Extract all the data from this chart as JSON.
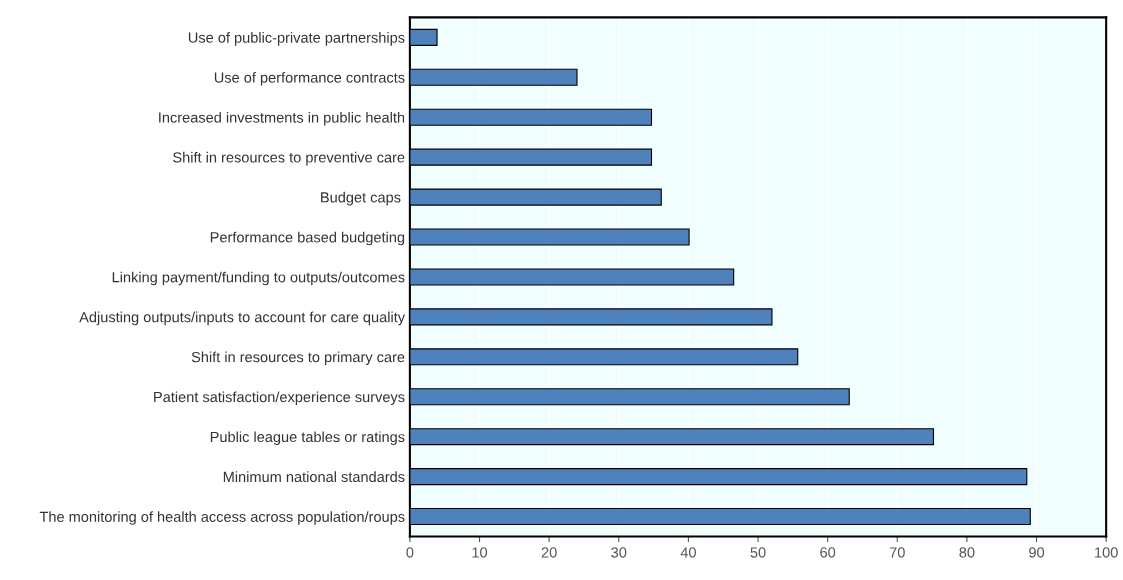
{
  "chart_data": {
    "type": "bar",
    "orientation": "horizontal",
    "categories": [
      "Use of public-private partnerships",
      "Use of performance contracts",
      "Increased investments in public health",
      "Shift in resources to preventive care",
      "Budget caps ",
      "Performance based budgeting",
      "Linking payment/funding to outputs/outcomes",
      "Adjusting outputs/inputs to account for care quality",
      "Shift in resources to primary care",
      "Patient satisfaction/experience surveys",
      "Public league tables or ratings",
      "Minimum national standards",
      "The monitoring of health access across population/roups"
    ],
    "values": [
      3.9,
      24.0,
      34.7,
      34.7,
      36.1,
      40.1,
      46.5,
      52.0,
      55.7,
      63.1,
      75.2,
      88.6,
      89.1
    ],
    "color": "#4f81bd",
    "xlim": [
      0,
      100
    ],
    "xticks": [
      0,
      10,
      20,
      30,
      40,
      50,
      60,
      70,
      80,
      90,
      100
    ],
    "grid": "x"
  }
}
